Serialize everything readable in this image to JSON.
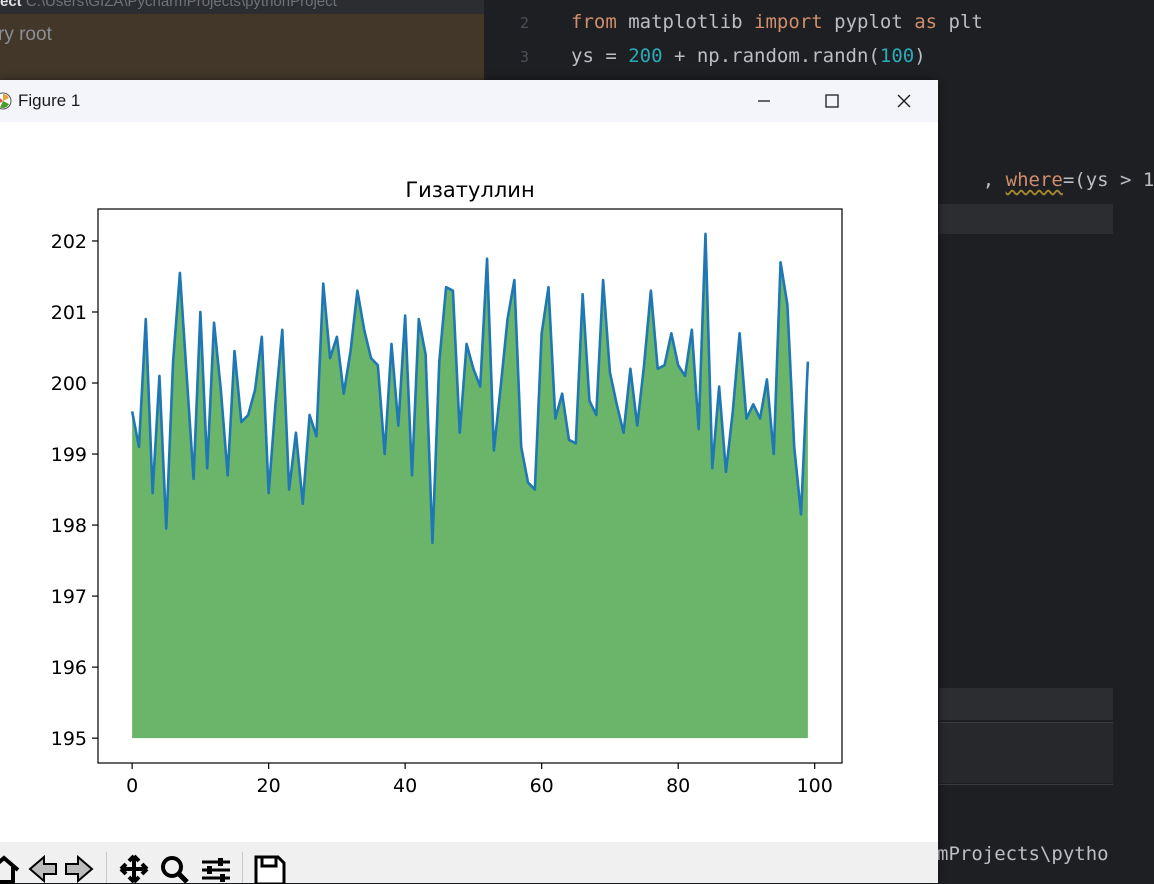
{
  "ide": {
    "project_label": "ect",
    "project_path": "C:\\Users\\GIZA\\PycharmProjects\\pythonProject",
    "selected_item": "ry root",
    "code_lines": [
      {
        "num": "2",
        "tokens": [
          [
            "kw",
            "from"
          ],
          [
            "plain",
            " matplotlib "
          ],
          [
            "kw",
            "import"
          ],
          [
            "plain",
            " pyplot "
          ],
          [
            "kw",
            "as"
          ],
          [
            "plain",
            " plt"
          ]
        ]
      },
      {
        "num": "3",
        "tokens": [
          [
            "plain",
            "ys = "
          ],
          [
            "num",
            "200"
          ],
          [
            "plain",
            " + np.random.randn("
          ],
          [
            "num",
            "100"
          ],
          [
            "plain",
            ")"
          ]
        ]
      }
    ],
    "partial_line": {
      "prefix": ", ",
      "param": "where",
      "rest": "=(ys > 1"
    },
    "terminal_text": "mProjects\\pytho"
  },
  "window": {
    "title": "Figure 1",
    "controls": {
      "minimize": "minimize-icon",
      "maximize": "maximize-icon",
      "close": "close-icon"
    }
  },
  "toolbar": {
    "icons": [
      "home-icon",
      "back-icon",
      "forward-icon",
      "pan-icon",
      "zoom-icon",
      "configure-subplots-icon",
      "save-icon"
    ]
  },
  "chart_data": {
    "type": "area",
    "title": "Гизатуллин",
    "xlabel": "",
    "ylabel": "",
    "xlim": [
      -5,
      104
    ],
    "ylim": [
      194.65,
      202.45
    ],
    "xticks": [
      0,
      20,
      40,
      60,
      80,
      100
    ],
    "yticks": [
      195,
      196,
      197,
      198,
      199,
      200,
      201,
      202
    ],
    "fill_baseline": 195,
    "line_color": "#1f77b4",
    "fill_color": "#6ab56a",
    "grid": false,
    "x": [
      0,
      1,
      2,
      3,
      4,
      5,
      6,
      7,
      8,
      9,
      10,
      11,
      12,
      13,
      14,
      15,
      16,
      17,
      18,
      19,
      20,
      21,
      22,
      23,
      24,
      25,
      26,
      27,
      28,
      29,
      30,
      31,
      32,
      33,
      34,
      35,
      36,
      37,
      38,
      39,
      40,
      41,
      42,
      43,
      44,
      45,
      46,
      47,
      48,
      49,
      50,
      51,
      52,
      53,
      54,
      55,
      56,
      57,
      58,
      59,
      60,
      61,
      62,
      63,
      64,
      65,
      66,
      67,
      68,
      69,
      70,
      71,
      72,
      73,
      74,
      75,
      76,
      77,
      78,
      79,
      80,
      81,
      82,
      83,
      84,
      85,
      86,
      87,
      88,
      89,
      90,
      91,
      92,
      93,
      94,
      95,
      96,
      97,
      98,
      99
    ],
    "values": [
      199.6,
      199.1,
      200.9,
      198.45,
      200.1,
      197.95,
      200.3,
      201.55,
      200.1,
      198.65,
      201.0,
      198.8,
      200.85,
      199.9,
      198.7,
      200.45,
      199.45,
      199.55,
      199.9,
      200.65,
      198.45,
      199.7,
      200.75,
      198.5,
      199.3,
      198.3,
      199.55,
      199.25,
      201.4,
      200.35,
      200.65,
      199.85,
      200.45,
      201.3,
      200.75,
      200.35,
      200.25,
      199.0,
      200.55,
      199.4,
      200.95,
      198.7,
      200.9,
      200.4,
      197.75,
      200.3,
      201.35,
      201.3,
      199.3,
      200.55,
      200.2,
      199.95,
      201.75,
      199.05,
      199.95,
      200.9,
      201.45,
      199.1,
      198.6,
      198.5,
      200.7,
      201.35,
      199.5,
      199.85,
      199.2,
      199.15,
      201.25,
      199.75,
      199.55,
      201.45,
      200.15,
      199.7,
      199.3,
      200.2,
      199.4,
      200.25,
      201.3,
      200.2,
      200.25,
      200.7,
      200.25,
      200.1,
      200.75,
      199.35,
      202.1,
      198.8,
      199.95,
      198.75,
      199.6,
      200.7,
      199.5,
      199.7,
      199.5,
      200.05,
      199.0,
      201.7,
      201.1,
      199.1,
      198.15,
      200.3
    ]
  }
}
